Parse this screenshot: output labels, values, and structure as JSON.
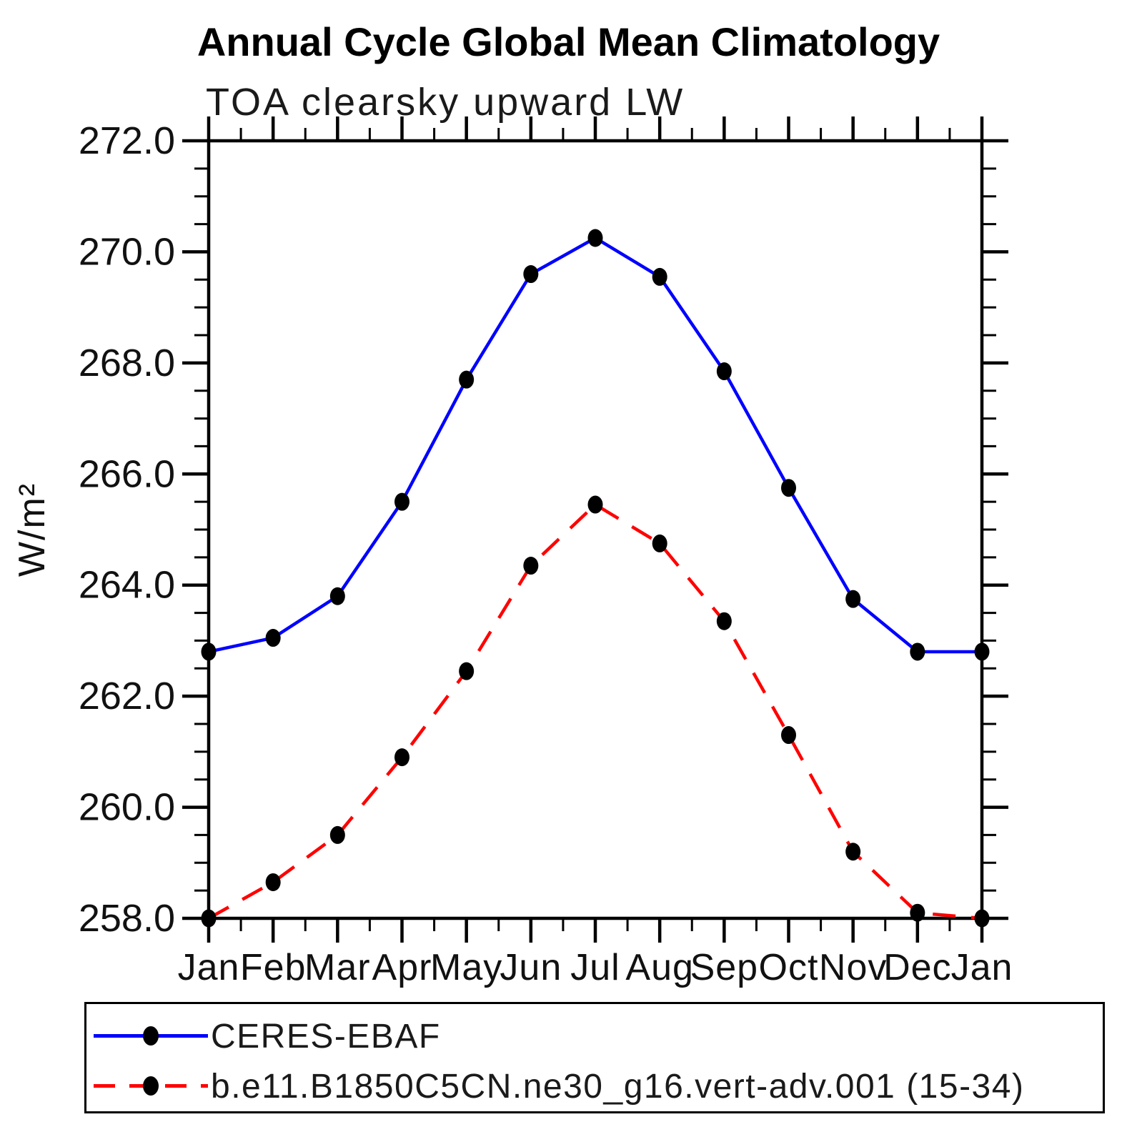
{
  "header": {
    "title": "Annual Cycle Global Mean Climatology",
    "subtitle": "TOA clearsky upward LW"
  },
  "chart_data": {
    "type": "line",
    "title": "Annual Cycle Global Mean Climatology",
    "subtitle": "TOA clearsky upward LW",
    "xlabel": "",
    "ylabel": "W/m²",
    "x_categories": [
      "Jan",
      "Feb",
      "Mar",
      "Apr",
      "May",
      "Jun",
      "Jul",
      "Aug",
      "Sep",
      "Oct",
      "Nov",
      "Dec",
      "Jan"
    ],
    "ylim": [
      258.0,
      272.0
    ],
    "y_major_interval": 2.0,
    "y_minor_interval": 0.5,
    "y_tick_labels": [
      "258.0",
      "260.0",
      "262.0",
      "264.0",
      "266.0",
      "268.0",
      "270.0",
      "272.0"
    ],
    "grid": false,
    "legend_position": "bottom-left-box",
    "frame_color": "#000000",
    "series": [
      {
        "name": "CERES-EBAF",
        "color": "#0000ff",
        "line_style": "solid",
        "marker": "filled-circle",
        "marker_color": "#000000",
        "values": [
          262.8,
          263.05,
          263.8,
          265.5,
          267.7,
          269.6,
          270.25,
          269.55,
          267.85,
          265.75,
          263.75,
          262.8,
          262.8
        ]
      },
      {
        "name": "b.e11.B1850C5CN.ne30_g16.vert-adv.001 (15-34)",
        "color": "#ff0000",
        "line_style": "dashed",
        "marker": "filled-circle",
        "marker_color": "#000000",
        "values": [
          258.0,
          258.65,
          259.5,
          260.9,
          262.45,
          264.35,
          265.45,
          264.75,
          263.35,
          261.3,
          259.2,
          258.1,
          258.0
        ]
      }
    ]
  }
}
